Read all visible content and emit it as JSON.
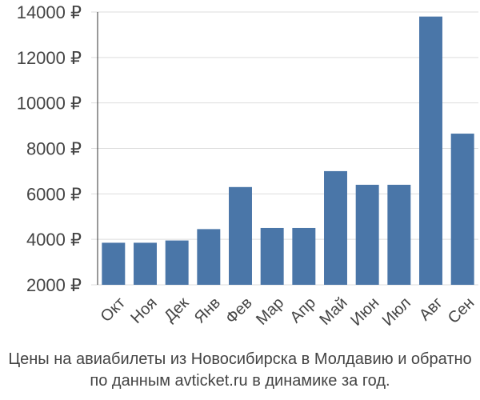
{
  "chart_data": {
    "type": "bar",
    "title": "",
    "xlabel": "",
    "ylabel": "",
    "categories": [
      "Окт",
      "Ноя",
      "Дек",
      "Янв",
      "Фев",
      "Мар",
      "Апр",
      "Май",
      "Июн",
      "Июл",
      "Авг",
      "Сен"
    ],
    "values": [
      3850,
      3850,
      3950,
      4450,
      6300,
      4500,
      4500,
      7000,
      6400,
      6400,
      13800,
      8650
    ],
    "ylim": [
      2000,
      14000
    ],
    "yticks": [
      2000,
      4000,
      6000,
      8000,
      10000,
      12000,
      14000
    ],
    "ytick_labels": [
      "2000 ₽",
      "4000 ₽",
      "6000 ₽",
      "8000 ₽",
      "10000 ₽",
      "12000 ₽",
      "14000 ₽"
    ],
    "grid": true,
    "bar_color": "#4a76a8",
    "caption_lines": [
      "Цены на авиабилеты из Новосибирска в Молдавию и обратно",
      "по данным avticket.ru в динамике за год."
    ]
  }
}
